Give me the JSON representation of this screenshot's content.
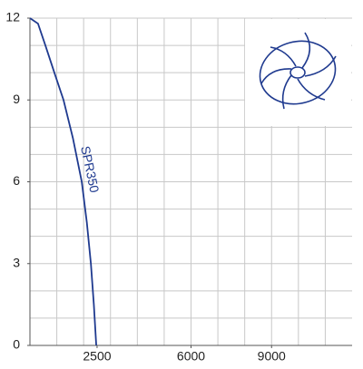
{
  "chart_data": {
    "type": "line",
    "x": [
      0,
      300,
      575,
      910,
      1250,
      1600,
      1930,
      2120,
      2270,
      2380,
      2470
    ],
    "series": [
      {
        "name": "SPR350",
        "color": "#1f3a8f",
        "values": [
          12,
          11.8,
          11,
          10,
          9,
          7.6,
          6,
          4.5,
          3,
          1.5,
          0
        ]
      }
    ],
    "xlim": [
      0,
      12000
    ],
    "xticks": [
      2500,
      6000,
      9000
    ],
    "x_grid": [
      1000,
      2000,
      3000,
      4000,
      5000,
      6000,
      7000,
      8000,
      9000,
      10000,
      11000
    ],
    "ylim": [
      0,
      12
    ],
    "yticks": [
      0,
      3,
      6,
      9,
      12
    ],
    "y_grid": [
      1,
      2,
      3,
      4,
      5,
      6,
      7,
      8,
      9,
      10,
      11,
      12
    ],
    "grid": true
  }
}
